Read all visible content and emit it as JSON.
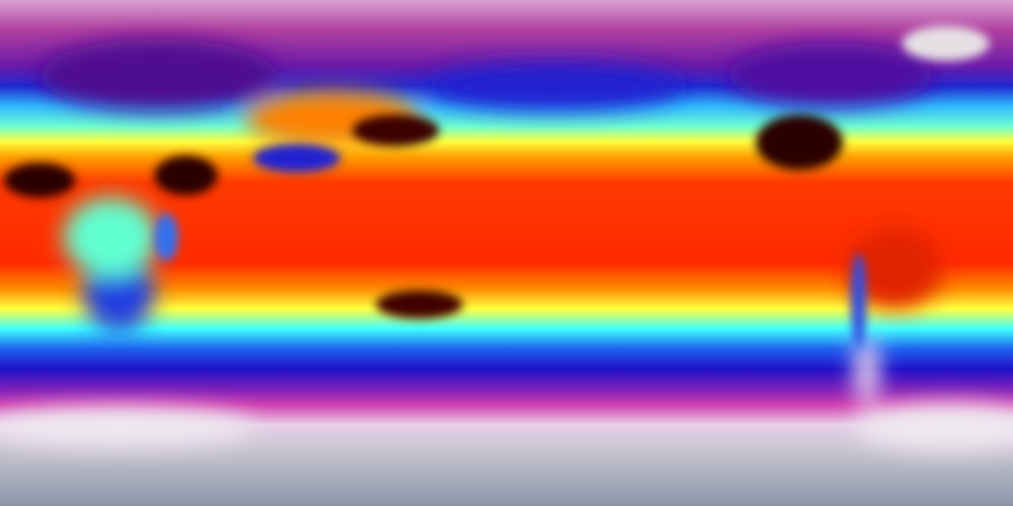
{
  "map": {
    "projection": "equirectangular",
    "palette": {
      "polar_north": "#d9a0d0",
      "cold_magenta": "#a0208f",
      "cool_blue": "#2020c0",
      "mild_cyan": "#40e0ff",
      "warm_yellow": "#ffff40",
      "hot_orange": "#ff8000",
      "hotter_red": "#ff2a00",
      "hottest_dark": "#2a0000",
      "antarctic_white": "#e8d8e8",
      "antarctic_gray": "#8a96a8"
    },
    "features": [
      "sahara-hot-spot",
      "arabia-hot-spot",
      "north-america-hot-spot",
      "australia-hot-spot",
      "tibet-cold-spot",
      "greenland-ice",
      "andes-cold-strip",
      "antarctica"
    ]
  }
}
